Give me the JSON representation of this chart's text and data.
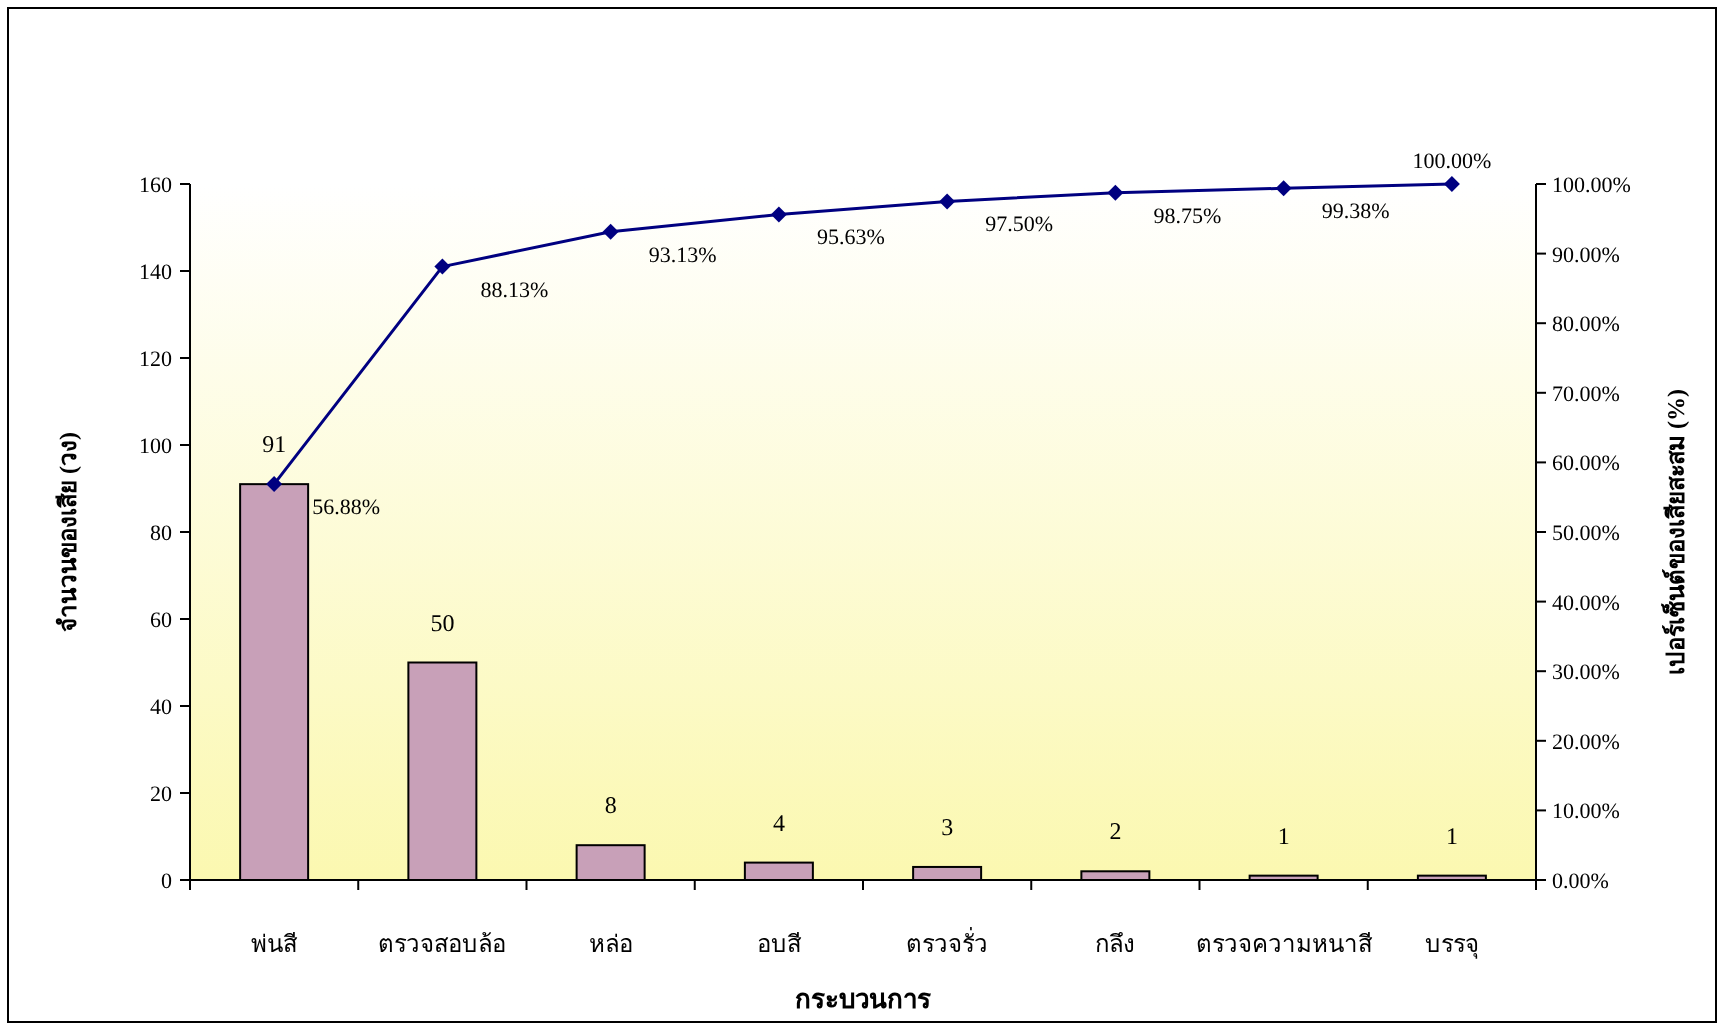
{
  "chart_data": {
    "type": "bar",
    "xlabel": "กระบวนการ",
    "ylabel": "จำนวนของเสีย (วง)",
    "y2label": "เปอร์เซ็นต์ของเสียสะสม (%)",
    "categories": [
      "พ่นสี",
      "ตรวจสอบล้อ",
      "หล่อ",
      "อบสี",
      "ตรวจรั่ว",
      "กลึง",
      "ตรวจความหนาสี",
      "บรรจุ"
    ],
    "series": [
      {
        "color": "#c8a0b8",
        "values": [
          91,
          50,
          8,
          4,
          3,
          2,
          1,
          1
        ],
        "value_labels": [
          "91",
          "50",
          "8",
          "4",
          "3",
          "2",
          "1",
          "1"
        ]
      },
      {
        "type": "line",
        "axis": "y2",
        "color": "#000080",
        "marker": "diamond",
        "values": [
          56.88,
          88.13,
          93.13,
          95.63,
          97.5,
          98.75,
          99.38,
          100
        ],
        "value_labels": [
          "56.88%",
          "88.13%",
          "93.13%",
          "95.63%",
          "97.50%",
          "98.75%",
          "99.38%",
          "100.00%"
        ]
      }
    ],
    "ylim": [
      0,
      160
    ],
    "yticks": [
      0,
      20,
      40,
      60,
      80,
      100,
      120,
      140,
      160
    ],
    "y2lim": [
      0,
      100
    ],
    "y2ticks": [
      {
        "value": 0,
        "label": "0.00%"
      },
      {
        "value": 10,
        "label": "10.00%"
      },
      {
        "value": 20,
        "label": "20.00%"
      },
      {
        "value": 30,
        "label": "30.00%"
      },
      {
        "value": 40,
        "label": "40.00%"
      },
      {
        "value": 50,
        "label": "50.00%"
      },
      {
        "value": 60,
        "label": "60.00%"
      },
      {
        "value": 70,
        "label": "70.00%"
      },
      {
        "value": 80,
        "label": "80.00%"
      },
      {
        "value": 90,
        "label": "90.00%"
      },
      {
        "value": 100,
        "label": "100.00%"
      }
    ],
    "grid": false
  }
}
